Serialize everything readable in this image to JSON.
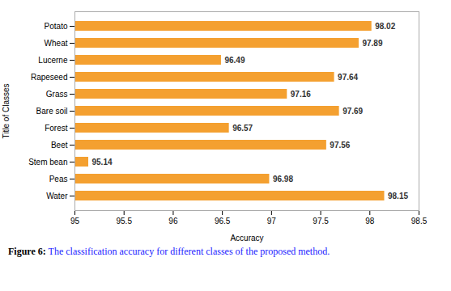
{
  "chart_data": {
    "type": "bar",
    "orientation": "horizontal",
    "categories": [
      "Water",
      "Peas",
      "Stem bean",
      "Beet",
      "Forest",
      "Bare soil",
      "Grass",
      "Rapeseed",
      "Lucerne",
      "Wheat",
      "Potato"
    ],
    "values": [
      98.15,
      96.98,
      95.14,
      97.56,
      96.57,
      97.69,
      97.16,
      97.64,
      96.49,
      97.89,
      98.02
    ],
    "color": "#F4A030",
    "xlabel": "Accuracy",
    "ylabel": "Title of Classes",
    "xlim": [
      95,
      98.5
    ],
    "xticks": [
      95,
      95.5,
      96,
      96.5,
      97,
      97.5,
      98,
      98.5
    ],
    "grid": false,
    "data_labels": true,
    "caption": "Figure 6: The classification accuracy for different classes of the proposed method."
  }
}
